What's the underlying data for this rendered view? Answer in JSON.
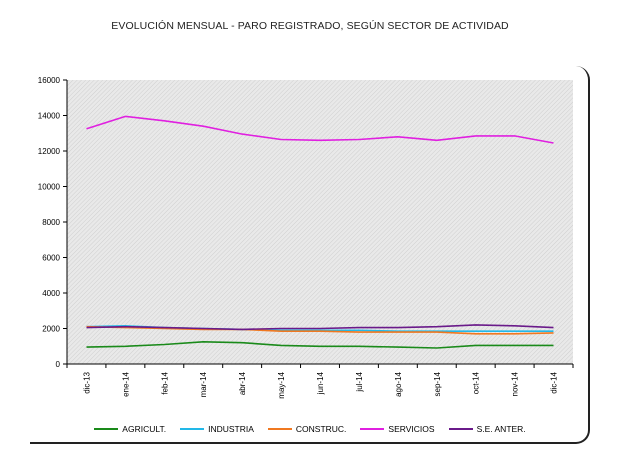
{
  "chart_data": {
    "type": "line",
    "title": "EVOLUCIÓN MENSUAL - PARO REGISTRADO, SEGÚN SECTOR DE ACTIVIDAD",
    "xlabel": "",
    "ylabel": "",
    "ylim": [
      0,
      16000
    ],
    "yticks": [
      0,
      2000,
      4000,
      6000,
      8000,
      10000,
      12000,
      14000,
      16000
    ],
    "categories": [
      "dic-13",
      "ene-14",
      "feb-14",
      "mar-14",
      "abr-14",
      "may-14",
      "jun-14",
      "jul-14",
      "ago-14",
      "sep-14",
      "oct-14",
      "nov-14",
      "dic-14"
    ],
    "legend_position": "bottom",
    "series": [
      {
        "name": "AGRICULT.",
        "color": "#1a8a1a",
        "values": [
          950,
          1000,
          1100,
          1250,
          1200,
          1050,
          1000,
          1000,
          950,
          900,
          1050,
          1050,
          1050
        ]
      },
      {
        "name": "INDUSTRIA",
        "color": "#22b8e8",
        "values": [
          2100,
          2150,
          2050,
          2000,
          1950,
          1900,
          1900,
          1900,
          1850,
          1850,
          1850,
          1850,
          1850
        ]
      },
      {
        "name": "CONSTRUC.",
        "color": "#f07820",
        "values": [
          2100,
          2050,
          2000,
          1950,
          1950,
          1850,
          1850,
          1800,
          1800,
          1800,
          1700,
          1700,
          1750
        ]
      },
      {
        "name": "SERVICIOS",
        "color": "#e020e0",
        "values": [
          13250,
          13950,
          13700,
          13400,
          12950,
          12650,
          12600,
          12650,
          12800,
          12600,
          12850,
          12850,
          12450
        ]
      },
      {
        "name": "S.E. ANTER.",
        "color": "#6a1a8a",
        "values": [
          2050,
          2100,
          2050,
          2000,
          1950,
          2000,
          2000,
          2050,
          2050,
          2100,
          2200,
          2150,
          2050
        ]
      }
    ]
  }
}
